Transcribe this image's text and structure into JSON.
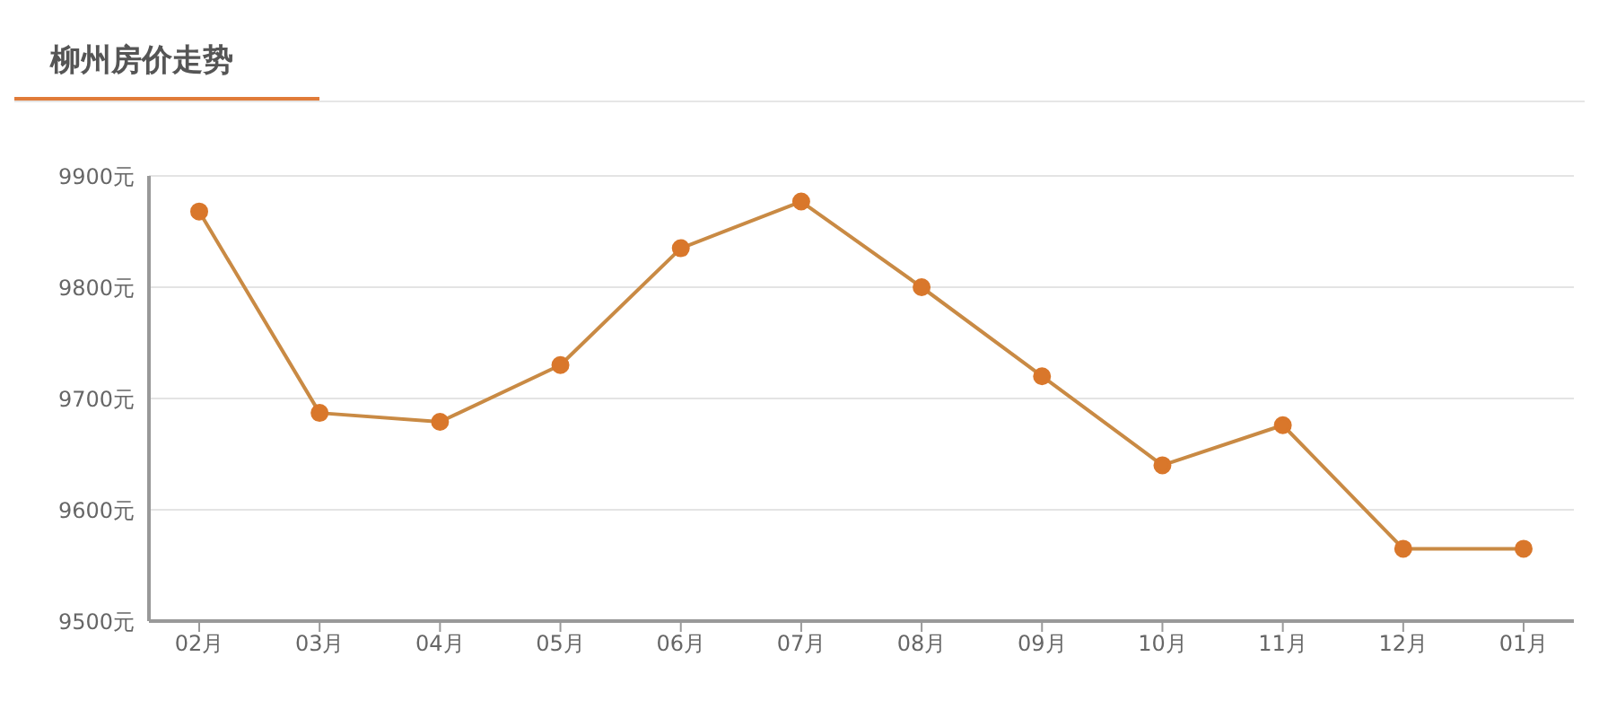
{
  "chart_data": {
    "type": "line",
    "title": "柳州房价走势",
    "categories": [
      "02月",
      "03月",
      "04月",
      "05月",
      "06月",
      "07月",
      "08月",
      "09月",
      "10月",
      "11月",
      "12月",
      "01月"
    ],
    "series": [
      {
        "color": "#c98a44",
        "values": [
          9868,
          9687,
          9679,
          9730,
          9835,
          9877,
          9800,
          9720,
          9640,
          9676,
          9565,
          9565
        ]
      }
    ],
    "ylim": [
      9500,
      9900
    ],
    "yticks": [
      {
        "value": 9500,
        "label": "9500元"
      },
      {
        "value": 9600,
        "label": "9600元"
      },
      {
        "value": 9700,
        "label": "9700元"
      },
      {
        "value": 9800,
        "label": "9800元"
      },
      {
        "value": 9900,
        "label": "9900元"
      }
    ],
    "grid": "y",
    "marker": "circle",
    "line_style": "solid"
  }
}
